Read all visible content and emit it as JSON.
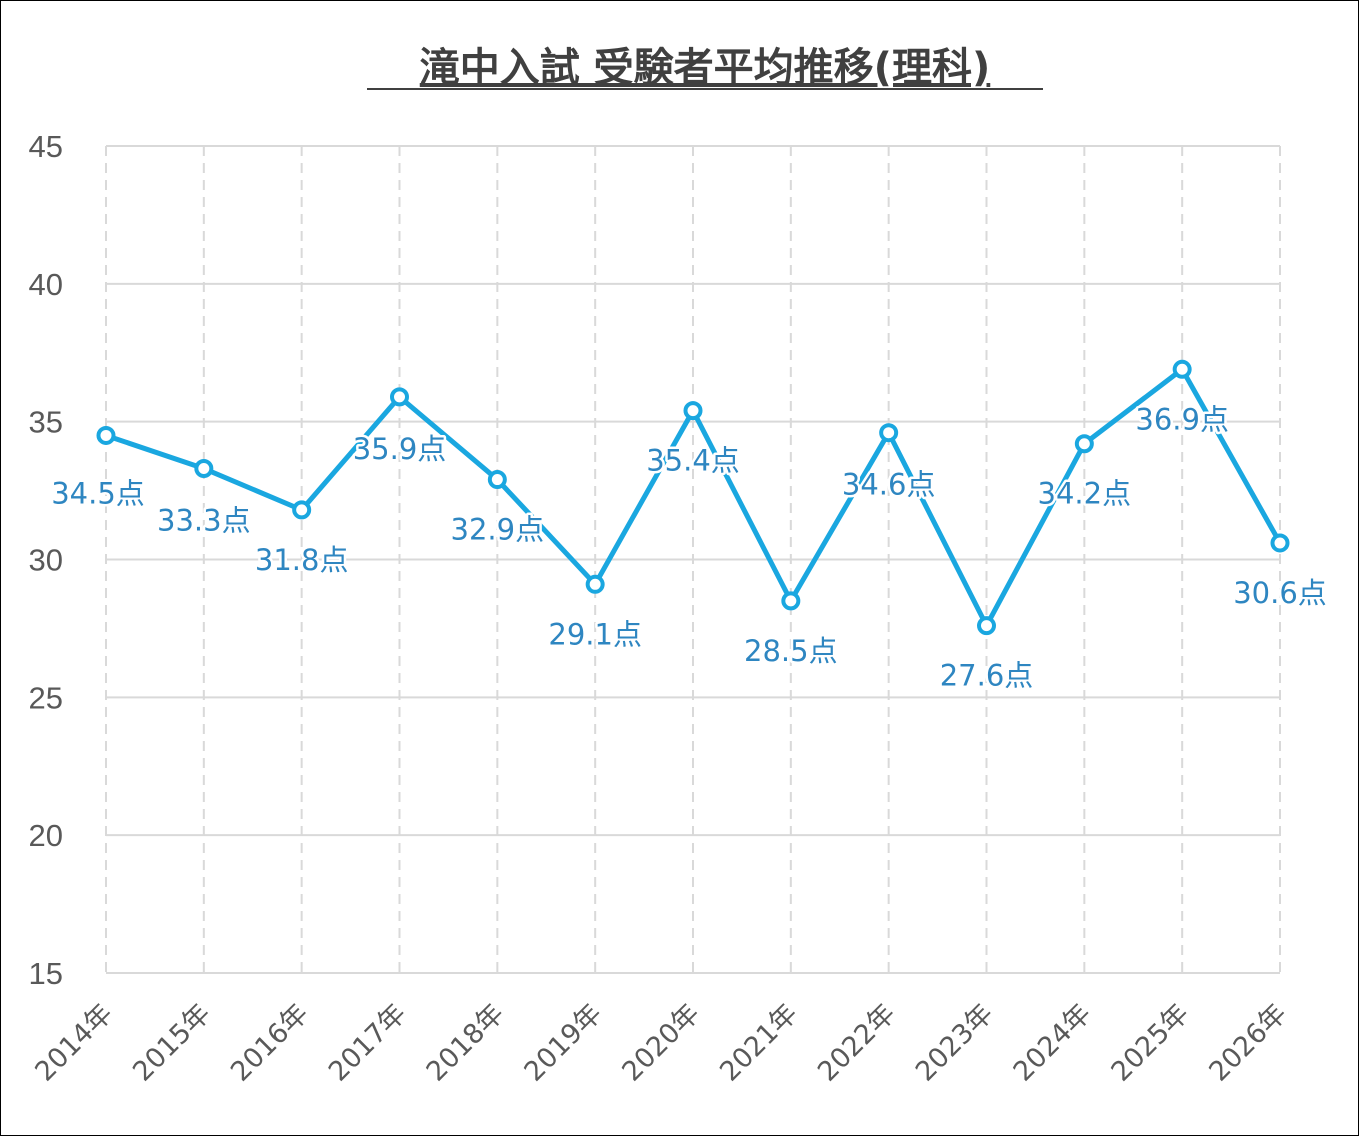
{
  "chart_data": {
    "type": "line",
    "title": "滝中入試 受験者平均推移(理科)",
    "categories": [
      "2014年",
      "2015年",
      "2016年",
      "2017年",
      "2018年",
      "2019年",
      "2020年",
      "2021年",
      "2022年",
      "2023年",
      "2024年",
      "2025年",
      "2026年"
    ],
    "series": [
      {
        "values": [
          34.5,
          33.3,
          31.8,
          35.9,
          32.9,
          29.1,
          35.4,
          28.5,
          34.6,
          27.6,
          34.2,
          36.9,
          30.6
        ],
        "data_labels": [
          "34.5点",
          "33.3点",
          "31.8点",
          "35.9点",
          "32.9点",
          "29.1点",
          "35.4点",
          "28.5点",
          "34.6点",
          "27.6点",
          "34.2点",
          "36.9点",
          "30.6点"
        ],
        "color": "#1AA7E0"
      }
    ],
    "ylim": [
      15,
      45
    ],
    "yticks": [
      "15",
      "20",
      "25",
      "30",
      "35",
      "40",
      "45"
    ],
    "ytick_values": [
      15,
      20,
      25,
      30,
      35,
      40,
      45
    ],
    "grid": true,
    "label_color": "#2E86C1",
    "line_color": "#1AA7E0"
  }
}
